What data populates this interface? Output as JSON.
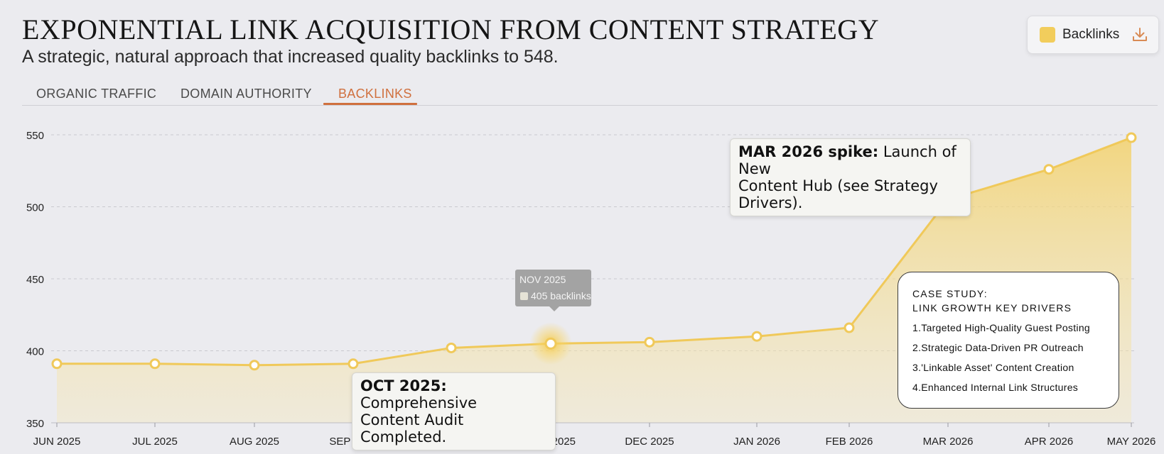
{
  "header": {
    "title": "EXPONENTIAL LINK ACQUISITION FROM CONTENT STRATEGY",
    "subtitle": "A strategic, natural approach that increased quality backlinks to 548."
  },
  "tabs": [
    {
      "label": "ORGANIC TRAFFIC",
      "active": false
    },
    {
      "label": "DOMAIN AUTHORITY",
      "active": false
    },
    {
      "label": "BACKLINKS",
      "active": true
    }
  ],
  "legend": {
    "label": "Backlinks",
    "color": "#f2cd5c",
    "icon": "download-icon"
  },
  "colors": {
    "line": "#f0c95a",
    "accent": "#d0703e"
  },
  "tooltip": {
    "title": "NOV 2025",
    "value": "405 backlinks"
  },
  "annotations": [
    {
      "bold": "OCT 2025:",
      "text": "Comprehensive",
      "line2": "Content Audit Completed."
    },
    {
      "bold": "MAR 2026 spike:",
      "text": "Launch of New",
      "line2": "Content Hub (see Strategy Drivers)."
    }
  ],
  "case_study": {
    "heading_line1": "CASE STUDY:",
    "heading_line2": "LINK GROWTH KEY DRIVERS",
    "items": [
      "1.Targeted High-Quality Guest Posting",
      "2.Strategic Data-Driven PR Outreach",
      "3.'Linkable Asset' Content Creation",
      "4.Enhanced Internal Link Structures"
    ]
  },
  "chart_data": {
    "type": "area",
    "categories": [
      "JUN 2025",
      "JUL 2025",
      "AUG 2025",
      "SEP 2025",
      "OCT 2025",
      "NOV 2025",
      "DEC 2025",
      "JAN 2026",
      "FEB 2026",
      "MAR 2026",
      "APR 2026",
      "MAY 2026"
    ],
    "series": [
      {
        "name": "Backlinks",
        "values": [
          391,
          391,
          390,
          391,
          402,
          405,
          406,
          410,
          416,
          505,
          526,
          548
        ]
      }
    ],
    "ylim": [
      350,
      550
    ],
    "yticks": [
      350,
      400,
      450,
      500,
      550
    ],
    "grid": true,
    "legend": "top-right",
    "highlighted": [
      "NOV 2025",
      "MAR 2026"
    ]
  }
}
